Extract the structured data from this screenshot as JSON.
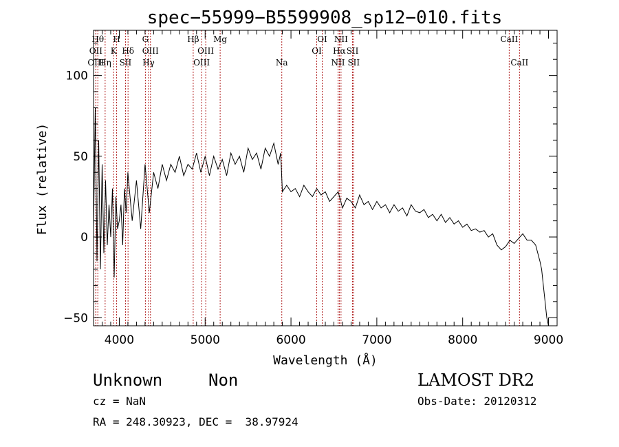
{
  "chart_data": {
    "type": "line",
    "title": "spec−55999−B5599908_sp12−010.fits",
    "xlabel": "Wavelength (Å)",
    "ylabel": "Flux (relative)",
    "xlim": [
      3700,
      9100
    ],
    "ylim": [
      -55,
      128
    ],
    "x_ticks": [
      4000,
      5000,
      6000,
      7000,
      8000,
      9000
    ],
    "x_tick_labels": [
      "4000",
      "5000",
      "6000",
      "7000",
      "8000",
      "9000"
    ],
    "y_ticks": [
      -50,
      0,
      50,
      100
    ],
    "y_tick_labels": [
      "−50",
      "0",
      "50",
      "100"
    ],
    "grid": false,
    "series": [
      {
        "x": [
          3700,
          3720,
          3740,
          3760,
          3780,
          3800,
          3820,
          3840,
          3860,
          3880,
          3900,
          3920,
          3940,
          3960,
          3980,
          4000,
          4020,
          4040,
          4060,
          4080,
          4100,
          4150,
          4200,
          4250,
          4300,
          4350,
          4400,
          4450,
          4500,
          4550,
          4600,
          4650,
          4700,
          4750,
          4800,
          4850,
          4900,
          4950,
          5000,
          5050,
          5100,
          5150,
          5200,
          5250,
          5300,
          5350,
          5400,
          5450,
          5500,
          5550,
          5600,
          5650,
          5700,
          5750,
          5800,
          5850,
          5880,
          5900,
          5950,
          6000,
          6050,
          6100,
          6150,
          6200,
          6250,
          6300,
          6350,
          6400,
          6450,
          6500,
          6550,
          6600,
          6650,
          6700,
          6750,
          6800,
          6850,
          6900,
          6950,
          7000,
          7050,
          7100,
          7150,
          7200,
          7250,
          7300,
          7350,
          7400,
          7450,
          7500,
          7550,
          7600,
          7650,
          7700,
          7750,
          7800,
          7850,
          7900,
          7950,
          8000,
          8050,
          8100,
          8150,
          8200,
          8250,
          8300,
          8350,
          8400,
          8450,
          8500,
          8550,
          8600,
          8650,
          8700,
          8750,
          8800,
          8850,
          8900,
          8920,
          8940,
          8960,
          8980,
          9000
        ],
        "y": [
          5,
          80,
          -15,
          60,
          -20,
          45,
          -10,
          35,
          -5,
          20,
          0,
          30,
          -25,
          25,
          5,
          10,
          20,
          -5,
          30,
          15,
          40,
          10,
          35,
          5,
          45,
          15,
          40,
          30,
          45,
          35,
          45,
          40,
          50,
          38,
          45,
          42,
          52,
          40,
          50,
          38,
          50,
          42,
          48,
          38,
          52,
          45,
          50,
          40,
          55,
          48,
          52,
          42,
          55,
          50,
          58,
          45,
          52,
          28,
          32,
          28,
          30,
          25,
          32,
          28,
          25,
          30,
          26,
          28,
          22,
          25,
          28,
          18,
          24,
          22,
          18,
          26,
          20,
          22,
          17,
          22,
          18,
          20,
          15,
          20,
          16,
          18,
          13,
          20,
          16,
          15,
          17,
          12,
          14,
          10,
          14,
          9,
          12,
          8,
          10,
          6,
          8,
          4,
          5,
          3,
          4,
          0,
          2,
          -5,
          -8,
          -6,
          -2,
          -4,
          -1,
          2,
          -2,
          -2,
          -5,
          -15,
          -20,
          -30,
          -40,
          -50,
          -55
        ]
      }
    ],
    "lines": [
      {
        "x": 3750,
        "label": "Hθ",
        "row": 0
      },
      {
        "x": 3727,
        "label": "OII",
        "row": 1
      },
      {
        "x": 3727,
        "label": "OIII",
        "row": 2
      },
      {
        "x": 3835,
        "label": "Hη",
        "row": 2
      },
      {
        "x": 3934,
        "label": "K",
        "row": 1
      },
      {
        "x": 3969,
        "label": "H",
        "row": 0
      },
      {
        "x": 4072,
        "label": "SΙΙ",
        "row": 2
      },
      {
        "x": 4102,
        "label": "Hδ",
        "row": 1
      },
      {
        "x": 4304,
        "label": "G",
        "row": 0
      },
      {
        "x": 4341,
        "label": "Hγ",
        "row": 2
      },
      {
        "x": 4363,
        "label": "OIII",
        "row": 1
      },
      {
        "x": 4861,
        "label": "Hβ",
        "row": 0
      },
      {
        "x": 4959,
        "label": "OIII",
        "row": 2
      },
      {
        "x": 5007,
        "label": "OIII",
        "row": 1
      },
      {
        "x": 5175,
        "label": "Mg",
        "row": 0
      },
      {
        "x": 5893,
        "label": "Na",
        "row": 2
      },
      {
        "x": 6300,
        "label": "OI",
        "row": 1
      },
      {
        "x": 6364,
        "label": "OI",
        "row": 0
      },
      {
        "x": 6548,
        "label": "NII",
        "row": 2
      },
      {
        "x": 6563,
        "label": "Hα",
        "row": 1
      },
      {
        "x": 6583,
        "label": "NII",
        "row": 0
      },
      {
        "x": 6717,
        "label": "SII",
        "row": 1
      },
      {
        "x": 6731,
        "label": "SII",
        "row": 2
      },
      {
        "x": 8542,
        "label": "CaII",
        "row": 0
      },
      {
        "x": 8662,
        "label": "CaII",
        "row": 2
      }
    ]
  },
  "info": {
    "class": "Unknown",
    "subclass": "Non",
    "cz": "cz = NaN",
    "coords": "RA = 248.30923, DEC =  38.97924",
    "survey": "LAMOST DR2",
    "obsdate": "Obs-Date: 20120312"
  },
  "colors": {
    "line": "#b22222",
    "spectrum": "#000000"
  }
}
